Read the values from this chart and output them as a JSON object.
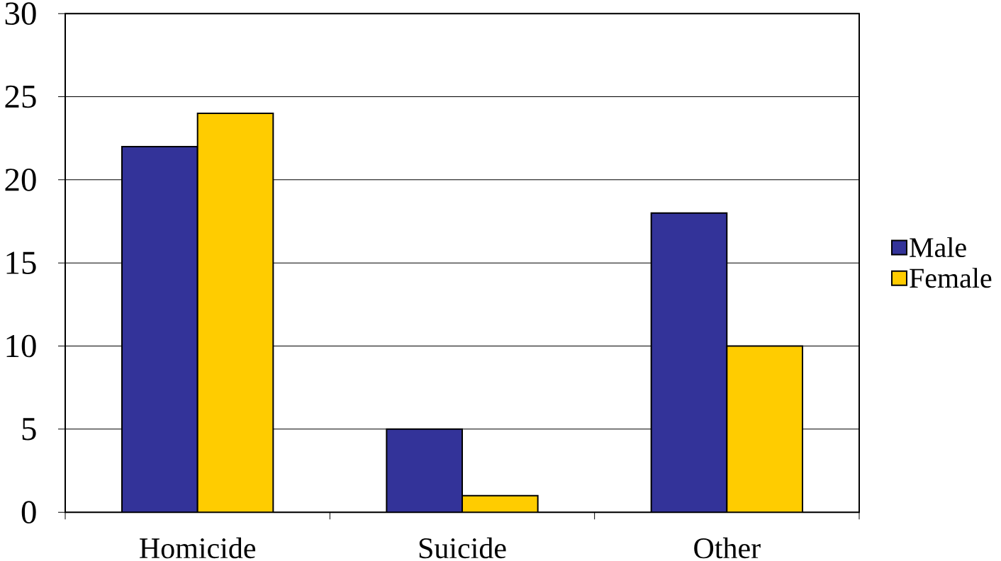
{
  "chart_data": {
    "type": "bar",
    "categories": [
      "Homicide",
      "Suicide",
      "Other"
    ],
    "series": [
      {
        "name": "Male",
        "color": "#333399",
        "values": [
          22,
          5,
          18
        ]
      },
      {
        "name": "Female",
        "color": "#ffcc00",
        "values": [
          24,
          1,
          10
        ]
      }
    ],
    "ylim": [
      0,
      30
    ],
    "yticks": [
      0,
      5,
      10,
      15,
      20,
      25,
      30
    ],
    "grid": "y",
    "legend": "right"
  }
}
